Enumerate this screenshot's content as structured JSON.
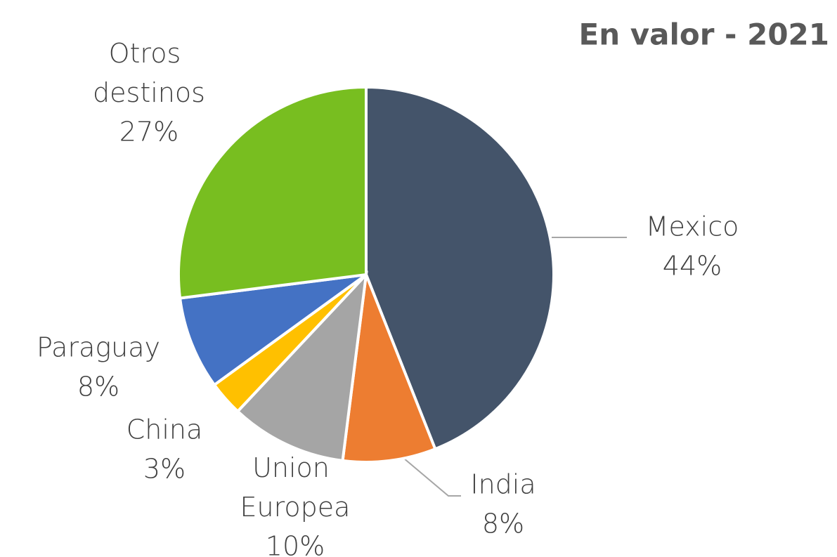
{
  "chart_data": {
    "type": "pie",
    "title": "En valor  - 2021",
    "categories": [
      "Mexico",
      "India",
      "Union Europea",
      "China",
      "Paraguay",
      "Otros destinos"
    ],
    "values": [
      44,
      8,
      10,
      3,
      8,
      27
    ],
    "value_labels": [
      "44%",
      "8%",
      "10%",
      "3%",
      "8%",
      "27%"
    ],
    "colors": [
      "#44546a",
      "#ed7d31",
      "#a5a5a5",
      "#ffc000",
      "#4472c4",
      "#78be20"
    ]
  }
}
